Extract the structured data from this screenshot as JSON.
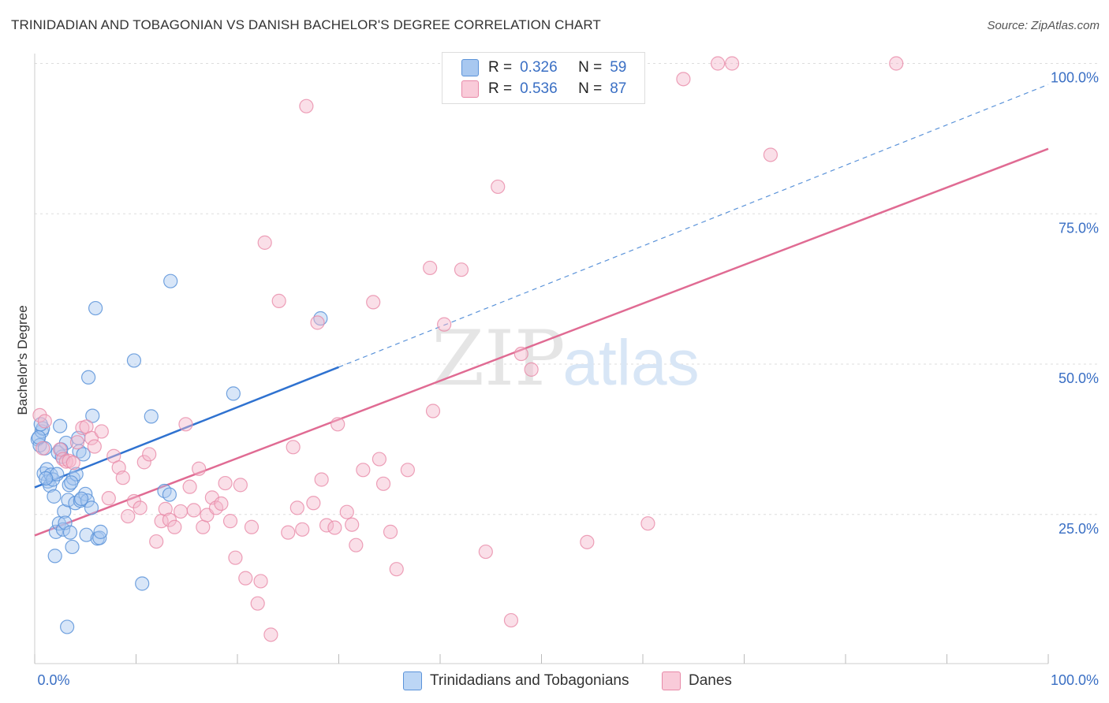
{
  "title": "TRINIDADIAN AND TOBAGONIAN VS DANISH BACHELOR'S DEGREE CORRELATION CHART",
  "source": "Source: ZipAtlas.com",
  "watermark_zip": "ZIP",
  "watermark_atlas": "atlas",
  "legend": {
    "r_label": "R =",
    "n_label": "N =",
    "series1": {
      "r": "0.326",
      "n": "59"
    },
    "series2": {
      "r": "0.536",
      "n": "87"
    }
  },
  "colors": {
    "blue_fill": "#a8c8f0",
    "blue_stroke": "#5b93d9",
    "blue_line": "#2f72d0",
    "pink_fill": "#f5b7cb",
    "pink_stroke": "#e889a8",
    "pink_line": "#e06b93",
    "axis_text": "#3a6fc4",
    "grid": "#dddddd"
  },
  "chart_data": {
    "type": "scatter",
    "title": "TRINIDADIAN AND TOBAGONIAN VS DANISH BACHELOR'S DEGREE CORRELATION CHART",
    "xlabel": "",
    "ylabel": "Bachelor's Degree",
    "xlim": [
      0,
      100
    ],
    "ylim": [
      0,
      103
    ],
    "x_tick_labels": [
      "0.0%",
      "100.0%"
    ],
    "y_ticks": [
      {
        "value": 25,
        "label": "25.0%"
      },
      {
        "value": 50,
        "label": "50.0%"
      },
      {
        "value": 75,
        "label": "75.0%"
      },
      {
        "value": 100,
        "label": "100.0%"
      }
    ],
    "legend_position": "bottom",
    "series": [
      {
        "name": "Trinidadians and Tobagonians",
        "r": 0.326,
        "n": 59,
        "trend": {
          "x0": 0,
          "y0": 29.5,
          "x1": 30,
          "y1": 49.5,
          "solid_until": 30,
          "dashed_to": 100,
          "y_at_100": 96.5
        },
        "points": [
          [
            0.3,
            37.5
          ],
          [
            0.5,
            36.5
          ],
          [
            0.7,
            38.8
          ],
          [
            0.8,
            39.3
          ],
          [
            0.9,
            31.8
          ],
          [
            1.0,
            36.0
          ],
          [
            1.2,
            32.5
          ],
          [
            1.3,
            30.5
          ],
          [
            1.5,
            29.8
          ],
          [
            1.6,
            31.6
          ],
          [
            1.8,
            30.8
          ],
          [
            1.9,
            28.0
          ],
          [
            2.0,
            18.1
          ],
          [
            2.1,
            22.1
          ],
          [
            2.2,
            31.7
          ],
          [
            2.3,
            35.3
          ],
          [
            2.4,
            23.5
          ],
          [
            2.5,
            39.7
          ],
          [
            2.7,
            34.6
          ],
          [
            2.8,
            22.5
          ],
          [
            2.9,
            25.5
          ],
          [
            3.0,
            23.6
          ],
          [
            3.1,
            36.9
          ],
          [
            3.2,
            6.3
          ],
          [
            3.3,
            27.4
          ],
          [
            3.4,
            29.9
          ],
          [
            3.5,
            22.0
          ],
          [
            3.7,
            19.6
          ],
          [
            3.8,
            31.0
          ],
          [
            4.0,
            26.9
          ],
          [
            4.1,
            31.7
          ],
          [
            4.3,
            37.7
          ],
          [
            4.4,
            35.5
          ],
          [
            4.5,
            27.3
          ],
          [
            4.8,
            35.0
          ],
          [
            5.0,
            28.4
          ],
          [
            5.1,
            21.6
          ],
          [
            5.2,
            27.3
          ],
          [
            5.3,
            47.8
          ],
          [
            5.6,
            26.1
          ],
          [
            5.7,
            41.4
          ],
          [
            6.0,
            59.3
          ],
          [
            6.2,
            21.0
          ],
          [
            6.4,
            21.1
          ],
          [
            6.5,
            22.1
          ],
          [
            9.8,
            50.6
          ],
          [
            10.6,
            13.5
          ],
          [
            11.5,
            41.3
          ],
          [
            12.8,
            28.9
          ],
          [
            13.3,
            28.3
          ],
          [
            13.4,
            63.8
          ],
          [
            19.6,
            45.1
          ],
          [
            28.2,
            57.6
          ],
          [
            0.4,
            37.8
          ],
          [
            1.1,
            31.0
          ],
          [
            2.6,
            35.8
          ],
          [
            3.6,
            30.3
          ],
          [
            4.6,
            27.6
          ],
          [
            0.6,
            40.0
          ]
        ]
      },
      {
        "name": "Danes",
        "r": 0.536,
        "n": 87,
        "trend": {
          "x0": 0,
          "y0": 21.5,
          "x1": 100,
          "y1": 85.8
        },
        "points": [
          [
            0.5,
            41.5
          ],
          [
            0.8,
            36.0
          ],
          [
            1.0,
            40.5
          ],
          [
            2.5,
            35.8
          ],
          [
            2.8,
            34.2
          ],
          [
            3.1,
            33.8
          ],
          [
            3.4,
            33.9
          ],
          [
            3.8,
            33.6
          ],
          [
            4.2,
            37.0
          ],
          [
            4.7,
            39.4
          ],
          [
            5.1,
            39.6
          ],
          [
            5.6,
            37.7
          ],
          [
            5.9,
            36.3
          ],
          [
            6.6,
            38.8
          ],
          [
            7.3,
            27.7
          ],
          [
            7.8,
            34.7
          ],
          [
            8.3,
            32.8
          ],
          [
            8.7,
            31.1
          ],
          [
            9.2,
            24.7
          ],
          [
            9.8,
            27.2
          ],
          [
            10.4,
            26.1
          ],
          [
            10.8,
            33.7
          ],
          [
            11.3,
            35.0
          ],
          [
            12.0,
            20.5
          ],
          [
            12.5,
            23.9
          ],
          [
            12.9,
            25.9
          ],
          [
            13.3,
            24.1
          ],
          [
            13.8,
            22.9
          ],
          [
            14.4,
            25.5
          ],
          [
            14.9,
            40.0
          ],
          [
            15.3,
            29.6
          ],
          [
            15.7,
            25.7
          ],
          [
            16.2,
            32.6
          ],
          [
            16.6,
            22.9
          ],
          [
            17.0,
            24.9
          ],
          [
            17.5,
            27.8
          ],
          [
            17.9,
            26.1
          ],
          [
            18.4,
            26.8
          ],
          [
            18.8,
            30.2
          ],
          [
            19.3,
            23.9
          ],
          [
            19.8,
            17.8
          ],
          [
            20.3,
            29.9
          ],
          [
            20.8,
            14.4
          ],
          [
            21.4,
            22.9
          ],
          [
            22.0,
            10.2
          ],
          [
            22.3,
            13.9
          ],
          [
            22.7,
            70.2
          ],
          [
            23.3,
            5.0
          ],
          [
            24.1,
            60.5
          ],
          [
            25.0,
            22.0
          ],
          [
            25.5,
            36.2
          ],
          [
            25.9,
            26.1
          ],
          [
            26.4,
            22.5
          ],
          [
            26.8,
            92.9
          ],
          [
            27.5,
            26.9
          ],
          [
            27.9,
            56.9
          ],
          [
            28.3,
            30.8
          ],
          [
            28.8,
            23.2
          ],
          [
            29.6,
            22.8
          ],
          [
            29.9,
            40.0
          ],
          [
            30.8,
            25.4
          ],
          [
            31.3,
            23.3
          ],
          [
            31.7,
            19.9
          ],
          [
            32.4,
            32.4
          ],
          [
            33.4,
            60.3
          ],
          [
            34.0,
            34.2
          ],
          [
            34.4,
            30.1
          ],
          [
            35.1,
            22.1
          ],
          [
            35.7,
            15.9
          ],
          [
            36.8,
            32.4
          ],
          [
            39.0,
            66.0
          ],
          [
            39.3,
            42.2
          ],
          [
            40.4,
            56.6
          ],
          [
            42.1,
            65.7
          ],
          [
            44.5,
            18.8
          ],
          [
            45.7,
            79.5
          ],
          [
            47.0,
            7.4
          ],
          [
            48.0,
            51.7
          ],
          [
            49.0,
            49.1
          ],
          [
            53.4,
            100.0
          ],
          [
            54.5,
            20.4
          ],
          [
            60.5,
            23.5
          ],
          [
            64.0,
            97.4
          ],
          [
            67.4,
            100.0
          ],
          [
            68.8,
            100.0
          ],
          [
            72.6,
            84.8
          ],
          [
            85.0,
            100.0
          ]
        ]
      }
    ]
  }
}
